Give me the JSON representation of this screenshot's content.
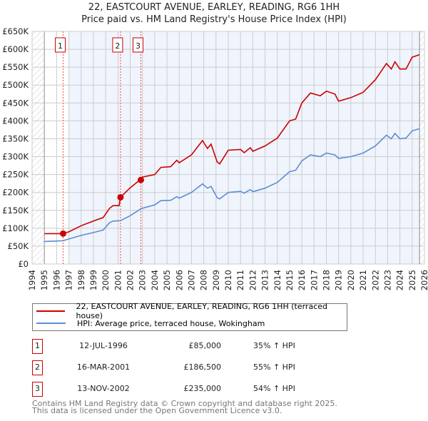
{
  "title": "22, EASTCOURT AVENUE, EARLEY, READING, RG6 1HH",
  "subtitle": "Price paid vs. HM Land Registry's House Price Index (HPI)",
  "colors": {
    "property": "#cc0000",
    "hpi": "#5b8fd0",
    "shade": "#f0f4fd",
    "grid": "#cccccc"
  },
  "chart_data": {
    "type": "line",
    "xlim": [
      1994,
      2026
    ],
    "ylim": [
      0,
      650000
    ],
    "x_ticks": [
      "1994",
      "1995",
      "1996",
      "1997",
      "1998",
      "1999",
      "2000",
      "2001",
      "2002",
      "2003",
      "2004",
      "2005",
      "2006",
      "2007",
      "2008",
      "2009",
      "2010",
      "2011",
      "2012",
      "2013",
      "2014",
      "2015",
      "2016",
      "2017",
      "2018",
      "2019",
      "2020",
      "2021",
      "2022",
      "2023",
      "2024",
      "2025",
      "2026"
    ],
    "y_ticks": [
      {
        "v": 0,
        "label": "£0"
      },
      {
        "v": 50000,
        "label": "£50K"
      },
      {
        "v": 100000,
        "label": "£100K"
      },
      {
        "v": 150000,
        "label": "£150K"
      },
      {
        "v": 200000,
        "label": "£200K"
      },
      {
        "v": 250000,
        "label": "£250K"
      },
      {
        "v": 300000,
        "label": "£300K"
      },
      {
        "v": 350000,
        "label": "£350K"
      },
      {
        "v": 400000,
        "label": "£400K"
      },
      {
        "v": 450000,
        "label": "£450K"
      },
      {
        "v": 500000,
        "label": "£500K"
      },
      {
        "v": 550000,
        "label": "£550K"
      },
      {
        "v": 600000,
        "label": "£600K"
      },
      {
        "v": 650000,
        "label": "£650K"
      }
    ],
    "data_range": [
      1995,
      2025.6
    ],
    "shade_from": 1997,
    "series": [
      {
        "name": "22, EASTCOURT AVENUE, EARLEY, READING, RG6 1HH (terraced house)",
        "color": "#cc0000",
        "x": [
          1995,
          1996.5,
          1997,
          1998,
          1999,
          1999.8,
          2000.3,
          2000.6,
          2001.1,
          2001.2,
          2002,
          2002.8,
          2003,
          2004,
          2004.5,
          2005.3,
          2005.8,
          2006,
          2007,
          2007.9,
          2008.3,
          2008.6,
          2009.1,
          2009.3,
          2010,
          2011,
          2011.3,
          2011.8,
          2012,
          2013,
          2014,
          2015,
          2015.5,
          2016,
          2016.7,
          2017.5,
          2018,
          2018.7,
          2019,
          2020,
          2021,
          2022,
          2022.9,
          2023.3,
          2023.6,
          2024,
          2024.5,
          2025,
          2025.6
        ],
        "y": [
          85000,
          85000,
          90000,
          107000,
          120000,
          130000,
          155000,
          163000,
          163000,
          186500,
          213000,
          235000,
          243000,
          250000,
          270000,
          272000,
          290000,
          283000,
          305000,
          345000,
          323000,
          335000,
          285000,
          280000,
          318000,
          320000,
          311000,
          325000,
          315000,
          330000,
          352000,
          400000,
          405000,
          450000,
          478000,
          470000,
          483000,
          475000,
          455000,
          465000,
          480000,
          515000,
          560000,
          545000,
          565000,
          545000,
          545000,
          578000,
          585000
        ]
      },
      {
        "name": "HPI: Average price, terraced house, Wokingham",
        "color": "#5b8fd0",
        "x": [
          1995,
          1996.5,
          1997,
          1998,
          1999,
          1999.8,
          2000.3,
          2000.6,
          2001.2,
          2002,
          2002.9,
          2004,
          2004.5,
          2005.3,
          2005.8,
          2006,
          2007,
          2007.9,
          2008.3,
          2008.6,
          2009.1,
          2009.3,
          2010,
          2011,
          2011.3,
          2011.8,
          2012,
          2013,
          2014,
          2015,
          2015.5,
          2016,
          2016.7,
          2017.5,
          2018,
          2018.7,
          2019,
          2020,
          2021,
          2022,
          2022.9,
          2023.3,
          2023.6,
          2024,
          2024.5,
          2025,
          2025.6
        ],
        "y": [
          63000,
          65000,
          70000,
          80000,
          88000,
          95000,
          115000,
          120000,
          121000,
          135000,
          155000,
          165000,
          177000,
          178000,
          188000,
          184000,
          200000,
          224000,
          212000,
          217000,
          185000,
          182000,
          200000,
          203000,
          198000,
          208000,
          202000,
          212000,
          228000,
          258000,
          262000,
          288000,
          305000,
          300000,
          310000,
          305000,
          295000,
          300000,
          310000,
          330000,
          360000,
          350000,
          365000,
          350000,
          352000,
          372000,
          378000
        ]
      }
    ],
    "sales": [
      {
        "id": "1",
        "x": 1996.53,
        "price": 85000,
        "date": "12-JUL-1996",
        "price_label": "£85,000",
        "hpi": "35% ↑ HPI"
      },
      {
        "id": "2",
        "x": 2001.21,
        "price": 186500,
        "date": "16-MAR-2001",
        "price_label": "£186,500",
        "hpi": "55% ↑ HPI"
      },
      {
        "id": "3",
        "x": 2002.87,
        "price": 235000,
        "date": "13-NOV-2002",
        "price_label": "£235,000",
        "hpi": "54% ↑ HPI"
      }
    ]
  },
  "footer": {
    "line1": "Contains HM Land Registry data © Crown copyright and database right 2025.",
    "line2": "This data is licensed under the Open Government Licence v3.0."
  }
}
